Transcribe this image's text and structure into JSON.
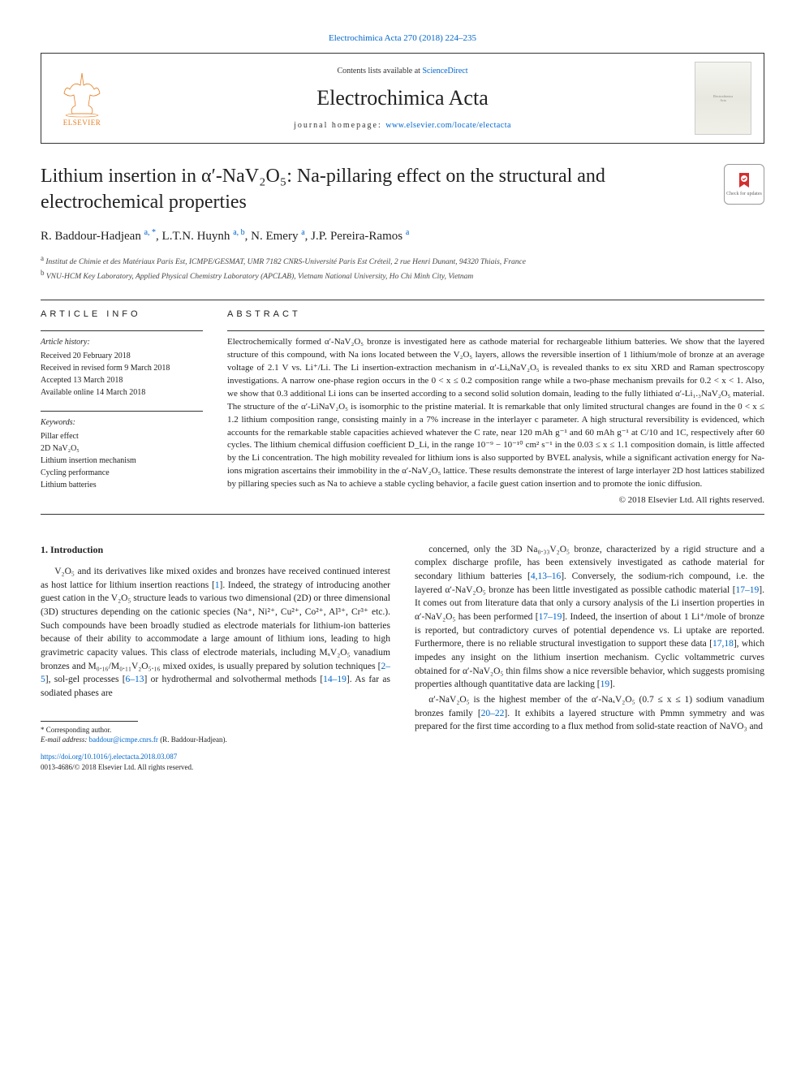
{
  "journal_ref": "Electrochimica Acta 270 (2018) 224–235",
  "header": {
    "contents_prefix": "Contents lists available at ",
    "contents_link": "ScienceDirect",
    "journal_name": "Electrochimica Acta",
    "homepage_prefix": "journal homepage: ",
    "homepage_link": "www.elsevier.com/locate/electacta",
    "publisher": "ELSEVIER"
  },
  "title": "Lithium insertion in α′-NaV₂O₅: Na-pillaring effect on the structural and electrochemical properties",
  "check_updates": "Check for updates",
  "authors_html": "R. Baddour-Hadjean <sup>a, *</sup>, L.T.N. Huynh <sup>a, b</sup>, N. Emery <sup>a</sup>, J.P. Pereira-Ramos <sup>a</sup>",
  "affiliations": [
    {
      "label": "a",
      "text": "Institut de Chimie et des Matériaux Paris Est, ICMPE/GESMAT, UMR 7182 CNRS-Université Paris Est Créteil, 2 rue Henri Dunant, 94320 Thiais, France"
    },
    {
      "label": "b",
      "text": "VNU-HCM Key Laboratory, Applied Physical Chemistry Laboratory (APCLAB), Vietnam National University, Ho Chi Minh City, Vietnam"
    }
  ],
  "article_info": {
    "label": "ARTICLE INFO",
    "history_heading": "Article history:",
    "history": [
      "Received 20 February 2018",
      "Received in revised form 9 March 2018",
      "Accepted 13 March 2018",
      "Available online 14 March 2018"
    ],
    "keywords_heading": "Keywords:",
    "keywords": [
      "Pillar effect",
      "2D NaV₂O₅",
      "Lithium insertion mechanism",
      "Cycling performance",
      "Lithium batteries"
    ]
  },
  "abstract": {
    "label": "ABSTRACT",
    "text": "Electrochemically formed α′-NaV₂O₅ bronze is investigated here as cathode material for rechargeable lithium batteries. We show that the layered structure of this compound, with Na ions located between the V₂O₅ layers, allows the reversible insertion of 1 lithium/mole of bronze at an average voltage of 2.1 V vs. Li⁺/Li. The Li insertion-extraction mechanism in α′-LiₓNaV₂O₅ is revealed thanks to ex situ XRD and Raman spectroscopy investigations. A narrow one-phase region occurs in the 0 < x ≤ 0.2 composition range while a two-phase mechanism prevails for 0.2 < x < 1. Also, we show that 0.3 additional Li ions can be inserted according to a second solid solution domain, leading to the fully lithiated α′-Li₁.₃NaV₂O₅ material. The structure of the α′-LiNaV₂O₅ is isomorphic to the pristine material. It is remarkable that only limited structural changes are found in the 0 < x ≤ 1.2 lithium composition range, consisting mainly in a 7% increase in the interlayer c parameter. A high structural reversibility is evidenced, which accounts for the remarkable stable capacities achieved whatever the C rate, near 120 mAh g⁻¹ and 60 mAh g⁻¹ at C/10 and 1C, respectively after 60 cycles. The lithium chemical diffusion coefficient D_Li, in the range 10⁻⁹ − 10⁻¹⁰ cm² s⁻¹ in the 0.03 ≤ x ≤ 1.1 composition domain, is little affected by the Li concentration. The high mobility revealed for lithium ions is also supported by BVEL analysis, while a significant activation energy for Na-ions migration ascertains their immobility in the α′-NaV₂O₅ lattice. These results demonstrate the interest of large interlayer 2D host lattices stabilized by pillaring species such as Na to achieve a stable cycling behavior, a facile guest cation insertion and to promote the ionic diffusion.",
    "copyright": "© 2018 Elsevier Ltd. All rights reserved."
  },
  "body": {
    "section_number": "1.",
    "section_title": "Introduction",
    "para1": "V₂O₅ and its derivatives like mixed oxides and bronzes have received continued interest as host lattice for lithium insertion reactions [1]. Indeed, the strategy of introducing another guest cation in the V₂O₅ structure leads to various two dimensional (2D) or three dimensional (3D) structures depending on the cationic species (Na⁺, Ni²⁺, Cu²⁺, Co²⁺, Al³⁺, Cr³⁺ etc.). Such compounds have been broadly studied as electrode materials for lithium-ion batteries because of their ability to accommodate a large amount of lithium ions, leading to high gravimetric capacity values. This class of electrode materials, including MₓV₂O₅ vanadium bronzes and M₀.₁₆/M₀.₁₁V₂O₅.₁₆ mixed oxides, is usually prepared by solution techniques [2–5], sol-gel processes [6–13] or hydrothermal and solvothermal methods [14–19]. As far as sodiated phases are",
    "para2": "concerned, only the 3D Na₀.₃₃V₂O₅ bronze, characterized by a rigid structure and a complex discharge profile, has been extensively investigated as cathode material for secondary lithium batteries [4,13–16]. Conversely, the sodium-rich compound, i.e. the layered α′-NaV₂O₅ bronze has been little investigated as possible cathodic material [17–19]. It comes out from literature data that only a cursory analysis of the Li insertion properties in α′-NaV₂O₅ has been performed [17–19]. Indeed, the insertion of about 1 Li⁺/mole of bronze is reported, but contradictory curves of potential dependence vs. Li uptake are reported. Furthermore, there is no reliable structural investigation to support these data [17,18], which impedes any insight on the lithium insertion mechanism. Cyclic voltammetric curves obtained for α′-NaV₂O₅ thin films show a nice reversible behavior, which suggests promising properties although quantitative data are lacking [19].",
    "para3": "α′-NaV₂O₅ is the highest member of the α′-NaₓV₂O₅ (0.7 ≤ x ≤ 1) sodium vanadium bronzes family [20–22]. It exhibits a layered structure with Pmmn symmetry and was prepared for the first time according to a flux method from solid-state reaction of NaVO₃ and"
  },
  "footnotes": {
    "corr": "* Corresponding author.",
    "email_label": "E-mail address: ",
    "email": "baddour@icmpe.cnrs.fr",
    "email_who": " (R. Baddour-Hadjean)."
  },
  "doi": {
    "link": "https://doi.org/10.1016/j.electacta.2018.03.087",
    "issn": "0013-4686/© 2018 Elsevier Ltd. All rights reserved."
  },
  "colors": {
    "link": "#0066cc",
    "elsevier": "#e67e22",
    "text": "#222222",
    "border": "#333333"
  }
}
